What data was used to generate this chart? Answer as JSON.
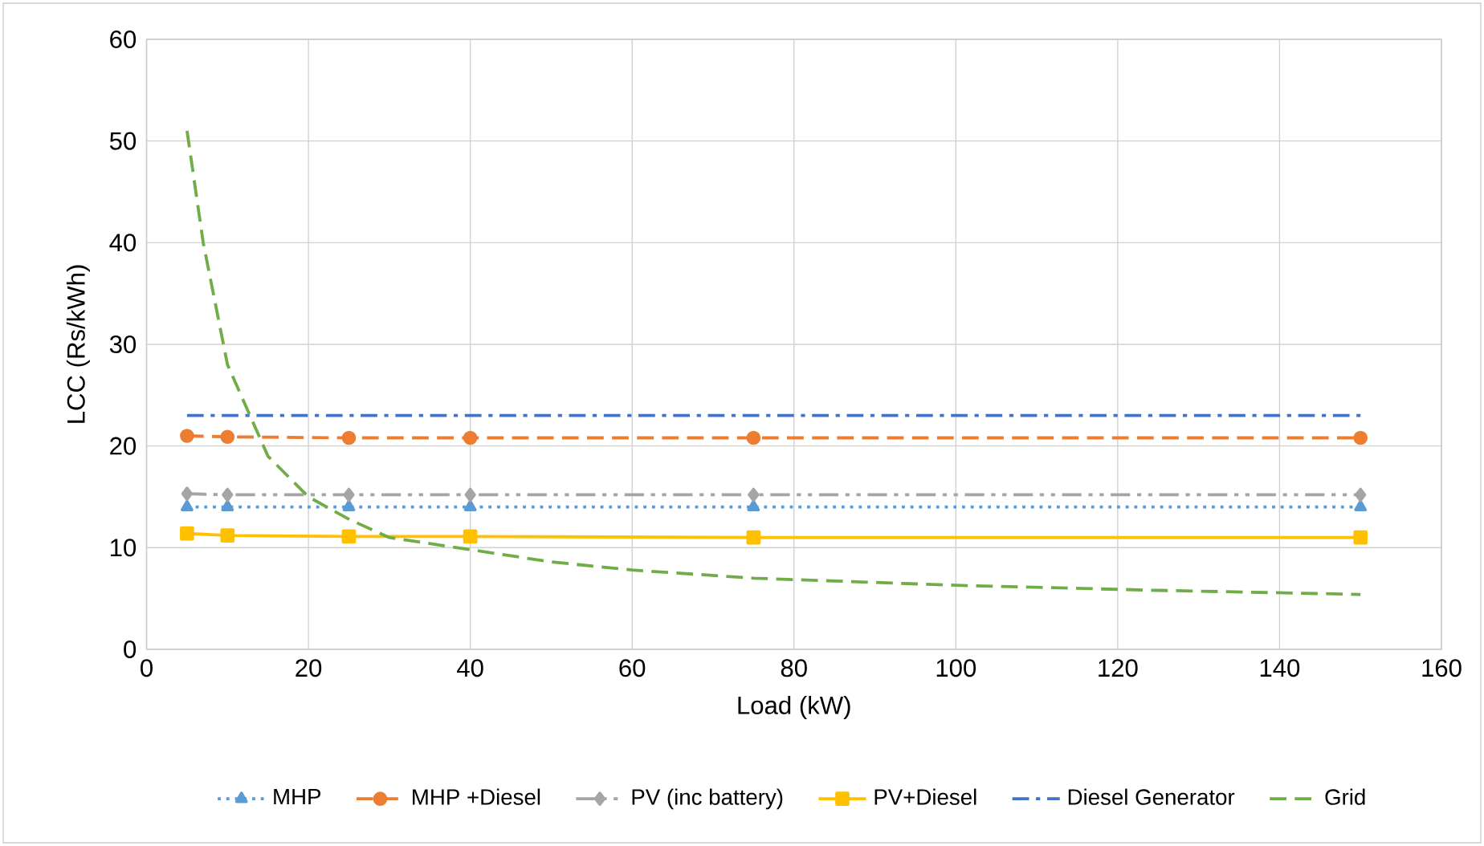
{
  "chart_data": {
    "type": "line",
    "xlabel": "Load (kW)",
    "ylabel": "LCC (Rs/kWh)",
    "xlim": [
      0,
      160
    ],
    "xticks": [
      0,
      20,
      40,
      60,
      80,
      100,
      120,
      140,
      160
    ],
    "ylim": [
      0,
      60
    ],
    "yticks": [
      0,
      10,
      20,
      30,
      40,
      50,
      60
    ],
    "grid": true,
    "legend": "bottom",
    "series": [
      {
        "name": "MHP",
        "color": "#5b9bd5",
        "marker": "triangle",
        "line_style": "dotted",
        "x": [
          5,
          10,
          25,
          40,
          75,
          150
        ],
        "values": [
          14.0,
          14.0,
          14.0,
          14.0,
          14.0,
          14.0
        ]
      },
      {
        "name": "MHP +Diesel",
        "color": "#ed7d31",
        "marker": "circle",
        "line_style": "dashed",
        "x": [
          5,
          10,
          25,
          40,
          75,
          150
        ],
        "values": [
          21.0,
          20.9,
          20.8,
          20.8,
          20.8,
          20.8
        ]
      },
      {
        "name": "PV (inc battery)",
        "color": "#a5a5a5",
        "marker": "diamond",
        "line_style": "dashdotdot",
        "x": [
          5,
          10,
          25,
          40,
          75,
          150
        ],
        "values": [
          15.3,
          15.2,
          15.2,
          15.2,
          15.2,
          15.2
        ]
      },
      {
        "name": "PV+Diesel",
        "color": "#ffc000",
        "marker": "square",
        "line_style": "solid",
        "x": [
          5,
          10,
          25,
          40,
          75,
          150
        ],
        "values": [
          11.4,
          11.2,
          11.1,
          11.1,
          11.0,
          11.0
        ]
      },
      {
        "name": "Diesel Generator",
        "color": "#4472c4",
        "marker": "none",
        "line_style": "dashdot",
        "x": [
          5,
          10,
          25,
          40,
          75,
          150
        ],
        "values": [
          23.0,
          23.0,
          23.0,
          23.0,
          23.0,
          23.0
        ]
      },
      {
        "name": "Grid",
        "color": "#70ad47",
        "marker": "none",
        "line_style": "dashed",
        "x": [
          5,
          7,
          10,
          15,
          20,
          25,
          30,
          40,
          50,
          60,
          75,
          100,
          125,
          150
        ],
        "values": [
          51,
          40,
          28,
          19,
          15,
          12.8,
          11,
          9.8,
          8.6,
          7.8,
          7.0,
          6.3,
          5.8,
          5.4
        ]
      }
    ]
  }
}
